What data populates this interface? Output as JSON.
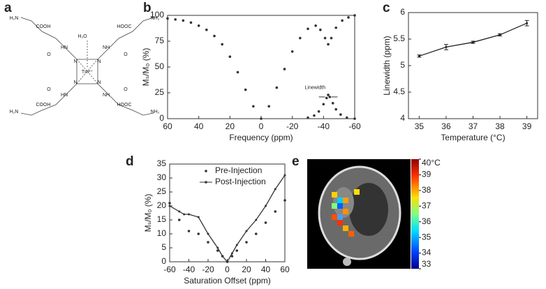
{
  "structure": {
    "panel_label": "a",
    "labels": [
      "H₂N",
      "COOH",
      "HN",
      "O",
      "H₂O",
      "HOOC",
      "NH₂",
      "NH",
      "N",
      "Tm³⁺"
    ]
  },
  "chart_data": [
    {
      "type": "line",
      "panel_label": "b",
      "xlabel": "Frequency (ppm)",
      "ylabel": "Mₛ/M₀ (%)",
      "xlim": [
        60,
        -60
      ],
      "xticks": [
        60,
        40,
        20,
        0,
        -20,
        -40,
        -60
      ],
      "ylim": [
        0,
        100
      ],
      "yticks": [
        0,
        25,
        50,
        75,
        100
      ],
      "annotation": "Linewidth",
      "series": [
        {
          "style": "markers",
          "color": "#333333",
          "x": [
            60,
            55,
            50,
            45,
            40,
            35,
            30,
            25,
            20,
            15,
            10,
            5,
            0,
            -5,
            -10,
            -15,
            -20,
            -25,
            -30,
            -35,
            -38,
            -41,
            -43,
            -45,
            -48,
            -52,
            -56,
            -60
          ],
          "values": [
            97,
            96,
            95,
            93,
            90,
            86,
            80,
            72,
            60,
            45,
            28,
            12,
            0,
            12,
            30,
            48,
            65,
            78,
            87,
            90,
            86,
            78,
            72,
            78,
            88,
            95,
            98,
            100
          ]
        },
        {
          "style": "markers",
          "color": "#333333",
          "x": [
            -30,
            -34,
            -37,
            -40,
            -42,
            -43,
            -44,
            -46,
            -48,
            -51,
            -55,
            -60
          ],
          "values": [
            1,
            3,
            7,
            14,
            20,
            23,
            21,
            15,
            9,
            4,
            1,
            0
          ]
        }
      ]
    },
    {
      "type": "line",
      "panel_label": "c",
      "xlabel": "Temperature (°C)",
      "ylabel": "Linewidth (ppm)",
      "xlim": [
        34.6,
        39.4
      ],
      "xticks": [
        35,
        36,
        37,
        38,
        39
      ],
      "ylim": [
        4,
        6
      ],
      "yticks": [
        4,
        4.5,
        5,
        5.5,
        6
      ],
      "series": [
        {
          "style": "line",
          "color": "#222222",
          "x": [
            35,
            36,
            37,
            38,
            39
          ],
          "values": [
            5.18,
            5.35,
            5.44,
            5.58,
            5.8
          ],
          "errors": [
            0.02,
            0.05,
            0.02,
            0.02,
            0.05
          ]
        }
      ]
    },
    {
      "type": "line",
      "panel_label": "d",
      "xlabel": "Saturation Offset (ppm)",
      "ylabel": "Mₛ/M₀ (%)",
      "xlim": [
        -60,
        60
      ],
      "xticks": [
        -60,
        -40,
        -20,
        0,
        20,
        40,
        60
      ],
      "ylim": [
        0,
        35
      ],
      "yticks": [
        0,
        5,
        10,
        15,
        20,
        25,
        30,
        35
      ],
      "legend": "upper right",
      "series": [
        {
          "name": "Pre-Injection",
          "style": "markers",
          "color": "#333333",
          "x": [
            -60,
            -50,
            -40,
            -30,
            -20,
            -10,
            -5,
            0,
            5,
            10,
            20,
            30,
            40,
            50,
            60
          ],
          "values": [
            21,
            15,
            11,
            10,
            7,
            4,
            2,
            0,
            2,
            4,
            7,
            10,
            14,
            18,
            22
          ]
        },
        {
          "name": "Post-Injection",
          "style": "line",
          "color": "#333333",
          "x": [
            -60,
            -50,
            -45,
            -40,
            -30,
            -20,
            -10,
            -5,
            0,
            5,
            10,
            20,
            30,
            40,
            50,
            60
          ],
          "values": [
            20,
            18,
            17,
            17,
            16,
            10,
            5,
            2,
            0,
            3,
            6,
            11,
            15,
            20,
            26,
            31
          ]
        }
      ]
    },
    {
      "type": "image",
      "panel_label": "e",
      "clim": [
        33,
        40
      ],
      "cticks": [
        {
          "value": 40,
          "label": "40°C"
        },
        39,
        38,
        37,
        36,
        35,
        34,
        33
      ]
    }
  ]
}
